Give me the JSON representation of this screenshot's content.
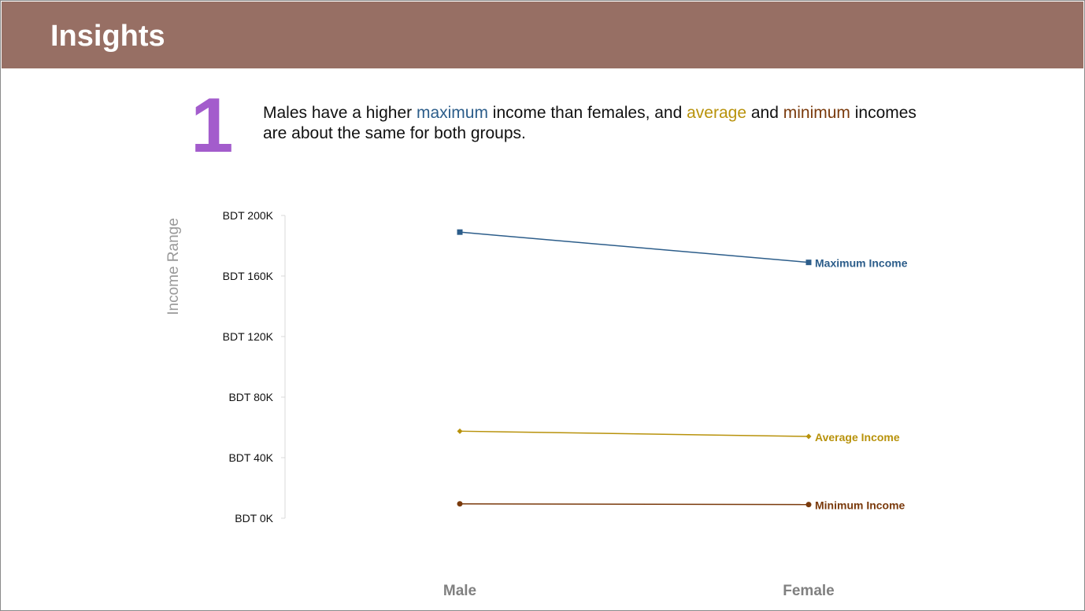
{
  "header": {
    "title": "Insights"
  },
  "insight": {
    "number": "1",
    "parts": {
      "p1": "Males have a higher ",
      "max_word": "maximum",
      "p2": " income than females, and ",
      "avg_word": "average",
      "p3": " and ",
      "min_word": "minimum",
      "p4": " incomes are about the same for both groups."
    }
  },
  "colors": {
    "header_bg": "#976f64",
    "number": "#a35ccc",
    "maximum": "#2c5d8a",
    "average": "#b8920b",
    "minimum": "#7a3a0c",
    "axis": "#d9d9d9"
  },
  "chart_data": {
    "type": "line",
    "title": "",
    "ylabel": "Income  Range",
    "xlabel": "",
    "categories": [
      "Male",
      "Female"
    ],
    "ylim": [
      0,
      200000
    ],
    "yticks": [
      {
        "value": 0,
        "label": "BDT 0K"
      },
      {
        "value": 40000,
        "label": "BDT 40K"
      },
      {
        "value": 80000,
        "label": "BDT 80K"
      },
      {
        "value": 120000,
        "label": "BDT 120K"
      },
      {
        "value": 160000,
        "label": "BDT 160K"
      },
      {
        "value": 200000,
        "label": "BDT 200K"
      }
    ],
    "series": [
      {
        "name": "Maximum  Income",
        "values": [
          189000,
          169000
        ],
        "color": "#2c5d8a",
        "marker": "square"
      },
      {
        "name": "Average  Income",
        "values": [
          57500,
          54000
        ],
        "color": "#b8920b",
        "marker": "diamond"
      },
      {
        "name": "Minimum  Income",
        "values": [
          9500,
          9000
        ],
        "color": "#7a3a0c",
        "marker": "circle"
      }
    ],
    "grid": false,
    "legend": "end-of-line labels"
  }
}
